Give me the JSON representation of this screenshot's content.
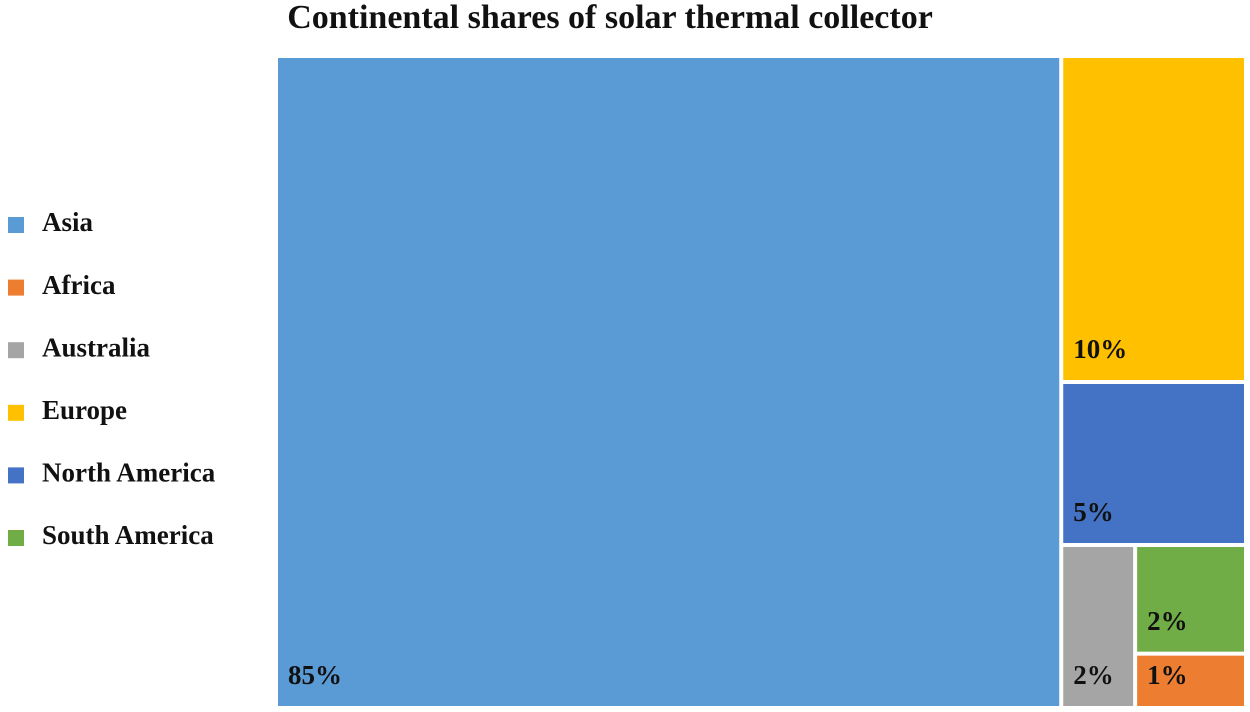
{
  "chart_data": {
    "type": "treemap",
    "title": "Continental shares of solar thermal collector",
    "series": [
      {
        "name": "Asia",
        "color": "#5b9bd5",
        "values": [
          85
        ],
        "value_labels": [
          "85%"
        ]
      },
      {
        "name": "Africa",
        "color": "#ed7d31",
        "values": [
          1
        ],
        "value_labels": [
          "1%"
        ]
      },
      {
        "name": "Australia",
        "color": "#a5a5a5",
        "values": [
          2
        ],
        "value_labels": [
          "2%"
        ]
      },
      {
        "name": "Europe",
        "color": "#ffc000",
        "values": [
          10
        ],
        "value_labels": [
          "10%"
        ]
      },
      {
        "name": "North America",
        "color": "#4472c4",
        "values": [
          5
        ],
        "value_labels": [
          "5%"
        ]
      },
      {
        "name": "South America",
        "color": "#70ad47",
        "values": [
          2
        ],
        "value_labels": [
          "2%"
        ]
      }
    ],
    "legend": "left"
  }
}
